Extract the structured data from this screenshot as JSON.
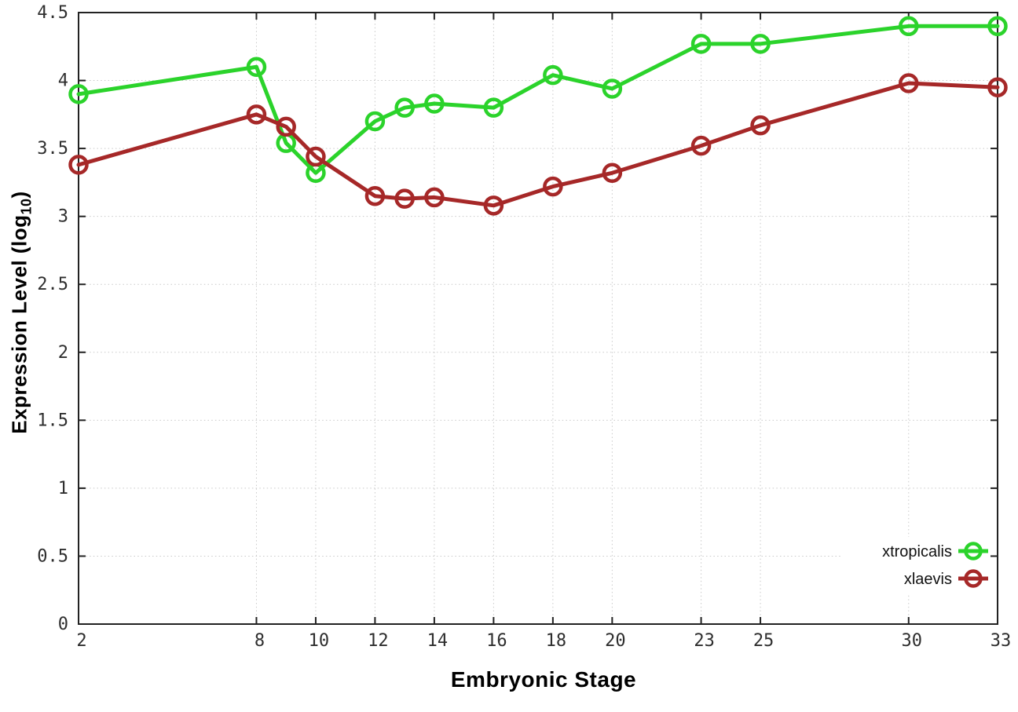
{
  "labels": {
    "ylabel_main": "Expression Level (log",
    "ylabel_sub": "10",
    "ylabel_close": ")",
    "xlabel": "Embryonic Stage"
  },
  "chart_data": {
    "type": "line",
    "title": "",
    "xlabel": "Embryonic Stage",
    "ylabel": "Expression Level (log10)",
    "xlim": [
      2,
      33
    ],
    "ylim": [
      0,
      4.5
    ],
    "xticks": [
      2,
      8,
      10,
      12,
      14,
      16,
      18,
      20,
      23,
      25,
      30,
      33
    ],
    "yticks": [
      0,
      0.5,
      1,
      1.5,
      2,
      2.5,
      3,
      3.5,
      4,
      4.5
    ],
    "grid": true,
    "legend_position": "inside bottom-right",
    "x": [
      2,
      8,
      9,
      10,
      12,
      13,
      14,
      16,
      18,
      20,
      23,
      25,
      30,
      33
    ],
    "series": [
      {
        "name": "xtropicalis",
        "color": "#2bd32b",
        "values": [
          3.9,
          4.1,
          3.54,
          3.32,
          3.7,
          3.8,
          3.83,
          3.8,
          4.04,
          3.94,
          4.27,
          4.27,
          4.4,
          4.4
        ]
      },
      {
        "name": "xlaevis",
        "color": "#a62828",
        "values": [
          3.38,
          3.75,
          3.66,
          3.44,
          3.15,
          3.13,
          3.14,
          3.08,
          3.22,
          3.32,
          3.52,
          3.67,
          3.98,
          3.95
        ]
      }
    ],
    "colors": {
      "grid": "#c9c9c9",
      "border": "#222222",
      "tick_text": "#2e2e2e",
      "background": "#ffffff"
    }
  }
}
